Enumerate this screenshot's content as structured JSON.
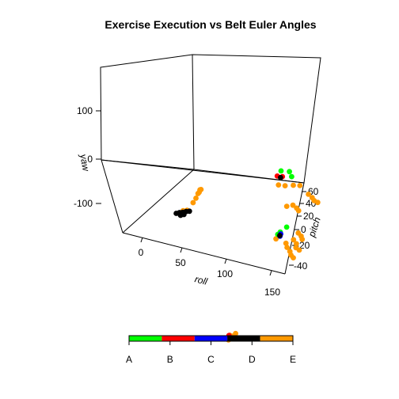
{
  "chart_data": {
    "type": "scatter",
    "projection": "3d",
    "title": "Exercise Execution vs Belt Euler Angles",
    "x_axis": {
      "label": "roll",
      "ticks": [
        "0",
        "50",
        "100",
        "150"
      ],
      "range": [
        -30,
        170
      ]
    },
    "y_axis": {
      "label": "pitch",
      "ticks": [
        "60",
        "40",
        "20",
        "0",
        "-20",
        "-40"
      ],
      "range": [
        -55,
        65
      ]
    },
    "z_axis": {
      "label": "yaw",
      "ticks": [
        "100",
        "0",
        "-100"
      ],
      "range": [
        -160,
        190
      ]
    },
    "grid": false,
    "legend": {
      "placement": "bottom",
      "entries": [
        {
          "label": "A",
          "color": "#00ff00"
        },
        {
          "label": "B",
          "color": "#ff0000"
        },
        {
          "label": "C",
          "color": "#0000ff"
        },
        {
          "label": "D",
          "color": "#000000"
        },
        {
          "label": "E",
          "color": "#ff9900"
        }
      ]
    },
    "series": [
      {
        "class": "E",
        "color": "#ff9900",
        "points": [
          {
            "roll": 130,
            "pitch": 20,
            "yaw": 140
          },
          {
            "roll": 134,
            "pitch": 22,
            "yaw": 137
          },
          {
            "roll": 138,
            "pitch": 25,
            "yaw": 135
          },
          {
            "roll": 142,
            "pitch": 27,
            "yaw": 133
          },
          {
            "roll": 150,
            "pitch": 28,
            "yaw": 116
          },
          {
            "roll": 156,
            "pitch": 27,
            "yaw": 113
          },
          {
            "roll": 160,
            "pitch": 26,
            "yaw": 110
          },
          {
            "roll": 164,
            "pitch": 26,
            "yaw": 108
          },
          {
            "roll": 150,
            "pitch": 18,
            "yaw": 108
          },
          {
            "roll": 156,
            "pitch": 17,
            "yaw": 106
          },
          {
            "roll": 160,
            "pitch": 16,
            "yaw": 104
          },
          {
            "roll": 150,
            "pitch": 14,
            "yaw": 112
          },
          {
            "roll": 160,
            "pitch": 16,
            "yaw": 55
          },
          {
            "roll": 165,
            "pitch": 15,
            "yaw": 52
          },
          {
            "roll": 168,
            "pitch": 14,
            "yaw": 48
          },
          {
            "roll": 160,
            "pitch": 13,
            "yaw": 45
          },
          {
            "roll": 165,
            "pitch": 12,
            "yaw": 40
          },
          {
            "roll": 168,
            "pitch": 10,
            "yaw": 36
          },
          {
            "roll": 170,
            "pitch": 11,
            "yaw": 30
          },
          {
            "roll": 158,
            "pitch": 10,
            "yaw": 32
          },
          {
            "roll": 163,
            "pitch": 9,
            "yaw": 27
          },
          {
            "roll": 166,
            "pitch": 8,
            "yaw": 22
          },
          {
            "roll": 167,
            "pitch": 9,
            "yaw": 15
          },
          {
            "roll": 155,
            "pitch": 11,
            "yaw": 38
          },
          {
            "roll": 142,
            "pitch": 12,
            "yaw": 40
          },
          {
            "roll": 0,
            "pitch": 40,
            "yaw": 8
          },
          {
            "roll": -2,
            "pitch": 43,
            "yaw": 12
          },
          {
            "roll": -5,
            "pitch": 46,
            "yaw": 16
          },
          {
            "roll": -8,
            "pitch": 49,
            "yaw": 18
          },
          {
            "roll": -12,
            "pitch": 52,
            "yaw": 12
          },
          {
            "roll": -14,
            "pitch": 52,
            "yaw": 5
          },
          {
            "roll": 3,
            "pitch": 34,
            "yaw": 0
          },
          {
            "roll": 1,
            "pitch": 32,
            "yaw": -5
          },
          {
            "roll": 1,
            "pitch": 33,
            "yaw": 2
          },
          {
            "roll": 2,
            "pitch": 35,
            "yaw": 0
          },
          {
            "roll": 124,
            "pitch": -5,
            "yaw": -155
          },
          {
            "roll": 126,
            "pitch": -4,
            "yaw": -150
          },
          {
            "roll": 125,
            "pitch": -8,
            "yaw": -158
          },
          {
            "roll": 123,
            "pitch": -6,
            "yaw": -152
          }
        ]
      },
      {
        "class": "A",
        "color": "#00ff00",
        "points": [
          {
            "roll": 124,
            "pitch": 25,
            "yaw": 160
          },
          {
            "roll": 130,
            "pitch": 27,
            "yaw": 158
          },
          {
            "roll": 136,
            "pitch": 25,
            "yaw": 153
          },
          {
            "roll": 140,
            "pitch": 20,
            "yaw": 52
          },
          {
            "roll": 138,
            "pitch": 17,
            "yaw": 45
          },
          {
            "roll": 137,
            "pitch": 16,
            "yaw": 41
          }
        ]
      },
      {
        "class": "B",
        "color": "#ff0000",
        "points": [
          {
            "roll": 125,
            "pitch": 22,
            "yaw": 154
          },
          {
            "roll": 129,
            "pitch": 23,
            "yaw": 153
          },
          {
            "roll": 122,
            "pitch": -6,
            "yaw": -153
          }
        ]
      },
      {
        "class": "C",
        "color": "#0000ff",
        "points": [
          {
            "roll": 142,
            "pitch": 15,
            "yaw": 46
          },
          {
            "roll": 143,
            "pitch": 14,
            "yaw": 43
          }
        ]
      },
      {
        "class": "D",
        "color": "#000000",
        "points": [
          {
            "roll": -5,
            "pitch": 32,
            "yaw": -5
          },
          {
            "roll": -3,
            "pitch": 33,
            "yaw": -4
          },
          {
            "roll": -1,
            "pitch": 34,
            "yaw": -4
          },
          {
            "roll": 1,
            "pitch": 35,
            "yaw": -3
          },
          {
            "roll": 3,
            "pitch": 36,
            "yaw": -3
          },
          {
            "roll": -4,
            "pitch": 33,
            "yaw": -6
          },
          {
            "roll": 0,
            "pitch": 32,
            "yaw": -7
          },
          {
            "roll": 2,
            "pitch": 33,
            "yaw": -6
          },
          {
            "roll": 127,
            "pitch": 23,
            "yaw": 150
          },
          {
            "roll": 141,
            "pitch": 15,
            "yaw": 42
          }
        ]
      }
    ]
  }
}
